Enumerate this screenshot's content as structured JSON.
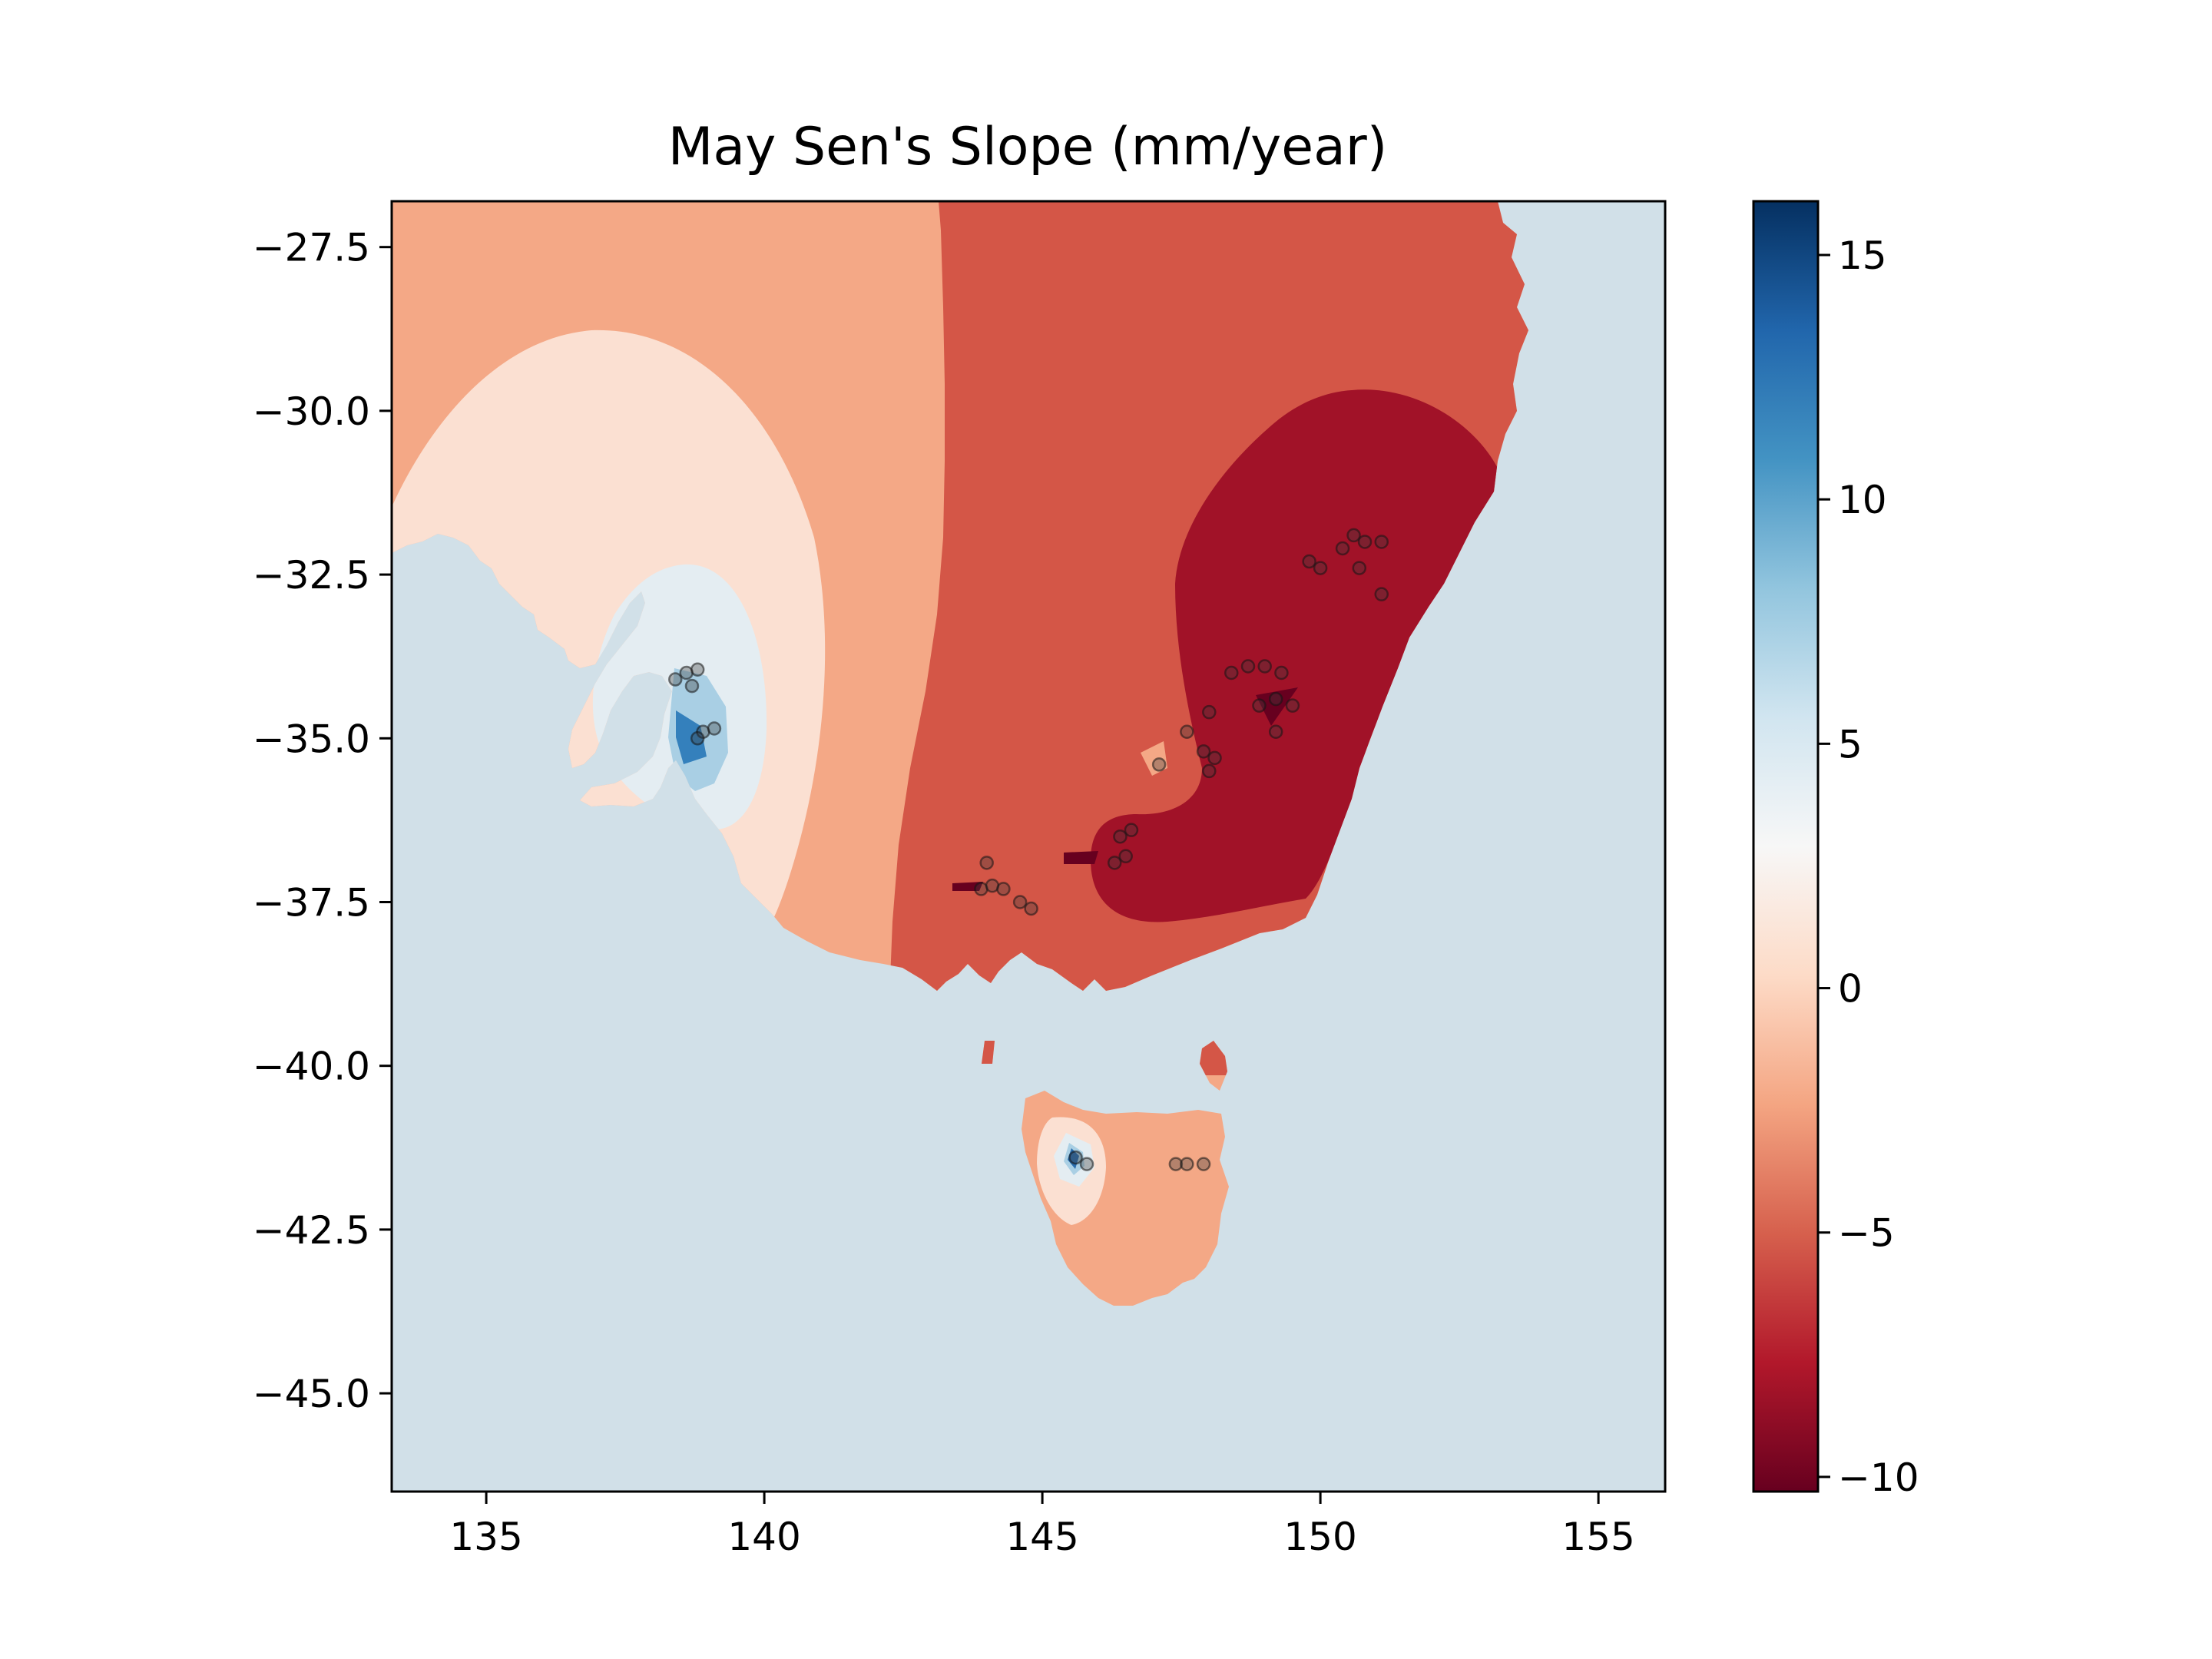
{
  "chart_data": {
    "type": "heatmap",
    "title": "May Sen's Slope (mm/year)",
    "xlabel": "",
    "ylabel": "",
    "xlim": [
      133.3,
      156.2
    ],
    "ylim": [
      -46.5,
      -26.8
    ],
    "x_ticks": [
      135,
      140,
      145,
      150,
      155
    ],
    "x_tick_labels": [
      "135",
      "140",
      "145",
      "150",
      "155"
    ],
    "y_ticks": [
      -27.5,
      -30.0,
      -32.5,
      -35.0,
      -37.5,
      -40.0,
      -42.5,
      -45.0
    ],
    "y_tick_labels": [
      "−27.5",
      "−30.0",
      "−32.5",
      "−35.0",
      "−37.5",
      "−40.0",
      "−42.5",
      "−45.0"
    ],
    "colorbar": {
      "colormap": "RdBu",
      "range": [
        -10.3,
        16.1
      ],
      "ticks": [
        15,
        10,
        5,
        0,
        -5,
        -10
      ],
      "tick_labels": [
        "15",
        "10",
        "5",
        "0",
        "−5",
        "−10"
      ],
      "stops": [
        "#67001f",
        "#b2182b",
        "#d6604d",
        "#f4a582",
        "#fddbc7",
        "#f7f7f7",
        "#d1e5f0",
        "#92c5de",
        "#4393c3",
        "#2166ac",
        "#053061"
      ]
    },
    "contour_levels": [
      {
        "range": "< -8",
        "color": "#a11228"
      },
      {
        "range": "-8 to -6",
        "color": "#d45647"
      },
      {
        "range": "-6 to -3",
        "color": "#f4a886"
      },
      {
        "range": "-3 to 0",
        "color": "#fbe0d2"
      },
      {
        "range": "0 to 3",
        "color": "#e4edf2"
      },
      {
        "range": "3 to 6",
        "color": "#a9cfe4"
      },
      {
        "range": "> 8",
        "color": "#3480bc"
      }
    ],
    "ocean_color": "#d1e0e8",
    "stations": [
      [
        138.4,
        -34.1
      ],
      [
        138.6,
        -34.0
      ],
      [
        138.8,
        -33.95
      ],
      [
        138.7,
        -34.2
      ],
      [
        138.9,
        -34.9
      ],
      [
        139.1,
        -34.85
      ],
      [
        138.8,
        -35.0
      ],
      [
        143.9,
        -37.3
      ],
      [
        144.1,
        -37.25
      ],
      [
        144.0,
        -36.9
      ],
      [
        144.3,
        -37.3
      ],
      [
        144.6,
        -37.5
      ],
      [
        144.8,
        -37.6
      ],
      [
        146.4,
        -36.5
      ],
      [
        146.6,
        -36.4
      ],
      [
        146.5,
        -36.8
      ],
      [
        146.3,
        -36.9
      ],
      [
        147.6,
        -34.9
      ],
      [
        147.9,
        -35.2
      ],
      [
        148.1,
        -35.3
      ],
      [
        148.0,
        -35.5
      ],
      [
        147.1,
        -35.4
      ],
      [
        148.4,
        -34.0
      ],
      [
        148.7,
        -33.9
      ],
      [
        149.0,
        -33.9
      ],
      [
        149.3,
        -34.0
      ],
      [
        148.9,
        -34.5
      ],
      [
        149.2,
        -34.4
      ],
      [
        149.5,
        -34.5
      ],
      [
        149.2,
        -34.9
      ],
      [
        148.0,
        -34.6
      ],
      [
        149.8,
        -32.3
      ],
      [
        150.0,
        -32.4
      ],
      [
        150.4,
        -32.1
      ],
      [
        150.6,
        -31.9
      ],
      [
        150.8,
        -32.0
      ],
      [
        151.1,
        -32.0
      ],
      [
        150.7,
        -32.4
      ],
      [
        151.1,
        -32.8
      ],
      [
        145.6,
        -41.4
      ],
      [
        145.8,
        -41.5
      ],
      [
        147.4,
        -41.5
      ],
      [
        147.6,
        -41.5
      ],
      [
        147.9,
        -41.5
      ]
    ]
  }
}
